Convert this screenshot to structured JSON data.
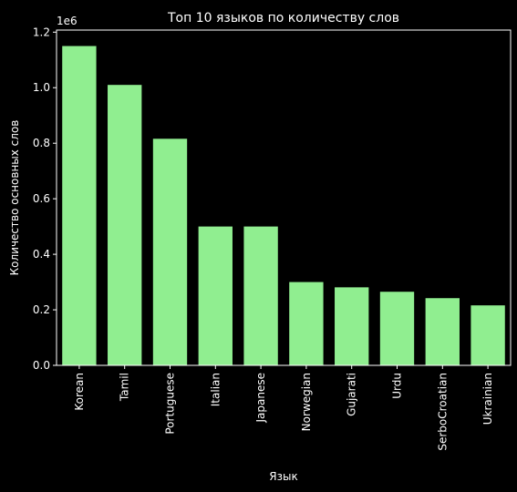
{
  "chart_data": {
    "type": "bar",
    "title": "Топ 10 языков по количеству слов",
    "xlabel": "Язык",
    "ylabel": "Количество основных слов",
    "y_offset_label": "1e6",
    "categories": [
      "Korean",
      "Tamil",
      "Portuguese",
      "Italian",
      "Japanese",
      "Norwegian",
      "Gujarati",
      "Urdu",
      "SerboCroatian",
      "Ukrainian"
    ],
    "values": [
      1150000,
      1010000,
      816000,
      500000,
      500000,
      300000,
      281000,
      265000,
      242000,
      216000
    ],
    "ylim": [
      0,
      1207500
    ],
    "yticks": [
      0,
      200000,
      400000,
      600000,
      800000,
      1000000,
      1200000
    ],
    "ytick_labels": [
      "0.0",
      "0.2",
      "0.4",
      "0.6",
      "0.8",
      "1.0",
      "1.2"
    ],
    "grid": false,
    "bar_color": "#90ee90",
    "background_color": "#000000",
    "axis_color": "#ffffff"
  }
}
